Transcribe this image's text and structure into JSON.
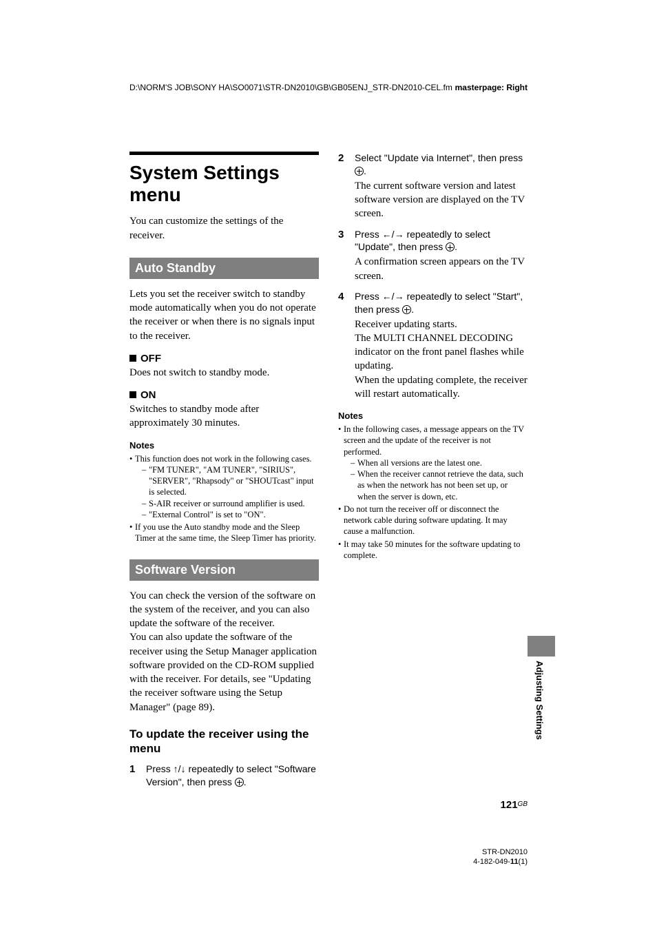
{
  "header": {
    "path": "D:\\NORM'S JOB\\SONY HA\\SO0071\\STR-DN2010\\GB\\GB05ENJ_STR-DN2010-CEL.fm",
    "masterpage": "masterpage: Right"
  },
  "left": {
    "h1": "System Settings menu",
    "intro": "You can customize the settings of the receiver.",
    "auto_standby": {
      "title": "Auto Standby",
      "body": "Lets you set the receiver switch to standby mode automatically when you do not operate the receiver or when there is no signals input to the receiver.",
      "off_label": "OFF",
      "off_body": "Does not switch to standby mode.",
      "on_label": "ON",
      "on_body": "Switches to standby mode after approximately 30 minutes.",
      "notes_label": "Notes",
      "note1": "This function does not work in the following cases.",
      "note1a": "\"FM TUNER\", \"AM TUNER\", \"SIRIUS\", \"SERVER\", \"Rhapsody\" or \"SHOUTcast\" input is selected.",
      "note1b": "S-AIR receiver or surround amplifier is used.",
      "note1c": "\"External Control\" is set to \"ON\".",
      "note2": "If you use the Auto standby mode and the Sleep Timer at the same time, the Sleep Timer has priority."
    },
    "software_version": {
      "title": "Software Version",
      "body": "You can check the version of the software on the system of the receiver, and you can also update the software of the receiver.\nYou can also update the software of the receiver using the Setup Manager application software provided on the CD-ROM supplied with the receiver. For details, see \"Updating the receiver software using the Setup Manager\" (page 89).",
      "sub_h": "To update the receiver using the menu",
      "step1": "Press ↑/↓ repeatedly to select \"Software Version\", then press "
    }
  },
  "right": {
    "step2_lead": "Select \"Update via Internet\", then press ",
    "step2_follow": "The current software version and latest software version are displayed on the TV screen.",
    "step3_lead_a": "Press ←/→ repeatedly to select \"Update\", then press ",
    "step3_follow": "A confirmation screen appears on the TV screen.",
    "step4_lead": "Press ←/→ repeatedly to select \"Start\", then press ",
    "step4_follow": "Receiver updating starts.\nThe MULTI CHANNEL DECODING indicator on the front panel flashes while updating.\nWhen the updating complete, the receiver will restart automatically.",
    "notes_label": "Notes",
    "note1": "In the following cases, a message appears on the TV screen and the update of the receiver is not performed.",
    "note1a": "When all versions are the latest one.",
    "note1b": "When the receiver cannot retrieve the data, such as when the network has not been set up, or when the server is down, etc.",
    "note2": "Do not turn the receiver off or disconnect the network cable during software updating. It may cause a malfunction.",
    "note3": "It may take 50 minutes for the software updating to complete."
  },
  "side_tab": "Adjusting Settings",
  "page_number": "121",
  "page_gb": "GB",
  "footer": {
    "model": "STR-DN2010",
    "rev_a": "4-182-049-",
    "rev_b": "11",
    "rev_c": "(1)"
  }
}
